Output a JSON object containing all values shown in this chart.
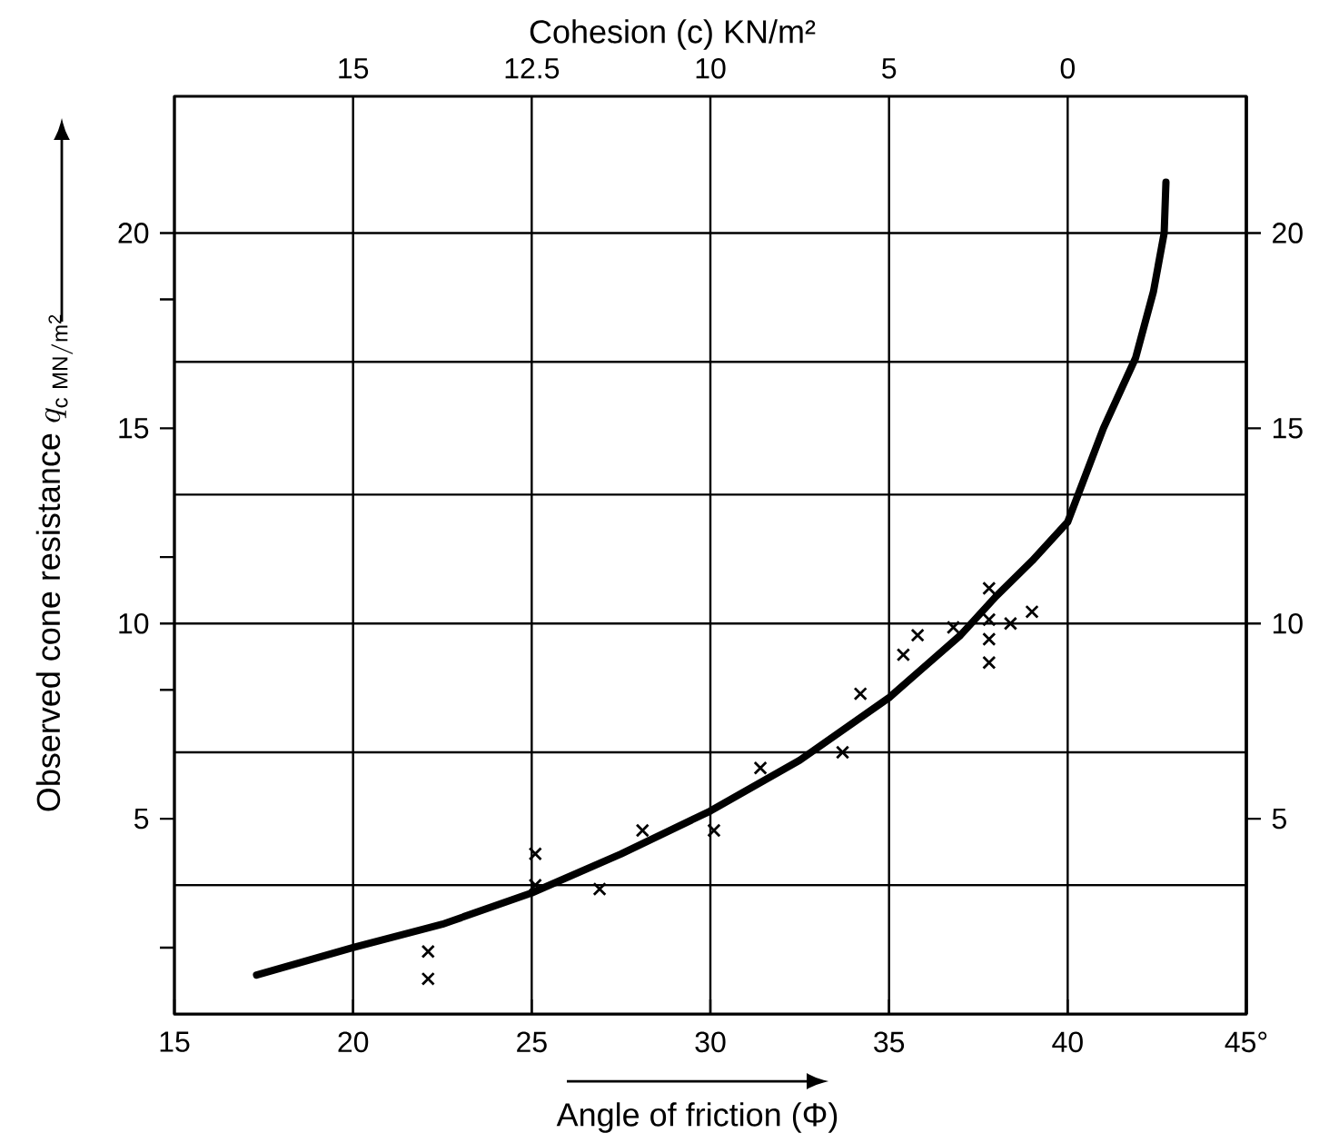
{
  "chart_data": {
    "type": "scatter",
    "xlabel": "Angle of friction (Φ)",
    "ylabel": "\\mbox{Observed cone resistance }q_{\\mathrm{c\\;MN/m^{2}}}",
    "x2label": "Cohesion (c) KN/m²",
    "xlim": [
      15,
      45
    ],
    "xticks": [
      15,
      20,
      25,
      30,
      35,
      40,
      {
        "value": 45,
        "label": "45°"
      }
    ],
    "annotations": [
      "15",
      "12.5",
      "10",
      "5",
      "0"
    ],
    "ylim": [
      0,
      23.5
    ],
    "yticks": [
      {
        "value": 1.7,
        "label": null
      },
      5,
      {
        "value": 8.3,
        "label": null
      },
      10,
      {
        "value": 11.7,
        "label": null
      },
      15,
      {
        "value": 18.3,
        "label": null
      },
      20
    ],
    "y2lim": [
      0,
      23.5
    ],
    "y2ticks": [
      5,
      10,
      15,
      20
    ],
    "grid": "x",
    "ref_lines": [
      {
        "axis": "y",
        "value": 3.3,
        "color": "#000000"
      },
      {
        "axis": "y",
        "value": 6.7,
        "color": "#000000"
      },
      {
        "axis": "y",
        "value": 10,
        "color": "#000000"
      },
      {
        "axis": "y",
        "value": 13.3,
        "color": "#000000"
      },
      {
        "axis": "y",
        "value": 16.7,
        "color": "#000000"
      },
      {
        "axis": "y",
        "value": 20,
        "color": "#000000"
      }
    ],
    "series": [
      {
        "marker": "cross",
        "color": "#000000",
        "x": [
          22.1,
          22.1,
          25.1,
          25.1,
          26.9,
          28.1,
          30.1,
          31.4,
          33.7,
          34.2,
          35.4,
          35.8,
          36.8,
          37.8,
          37.8,
          37.8,
          37.8,
          38.4,
          39.0
        ],
        "values": [
          1.6,
          0.9,
          4.1,
          3.3,
          3.2,
          4.7,
          4.7,
          6.3,
          6.7,
          8.2,
          9.2,
          9.7,
          9.9,
          10.9,
          10.1,
          9.6,
          9.0,
          10.0,
          10.3
        ]
      },
      {
        "type": "line",
        "marker": "none",
        "color": "#000000",
        "x": [
          17.3,
          20,
          22.5,
          25,
          27.5,
          30,
          32.5,
          35,
          37,
          38,
          39,
          40,
          41,
          41.9,
          42.4,
          42.7,
          42.75
        ],
        "values": [
          1.0,
          1.7,
          2.3,
          3.1,
          4.1,
          5.2,
          6.5,
          8.1,
          9.7,
          10.7,
          11.6,
          12.6,
          15.0,
          16.8,
          18.5,
          20.0,
          21.3
        ]
      }
    ]
  }
}
